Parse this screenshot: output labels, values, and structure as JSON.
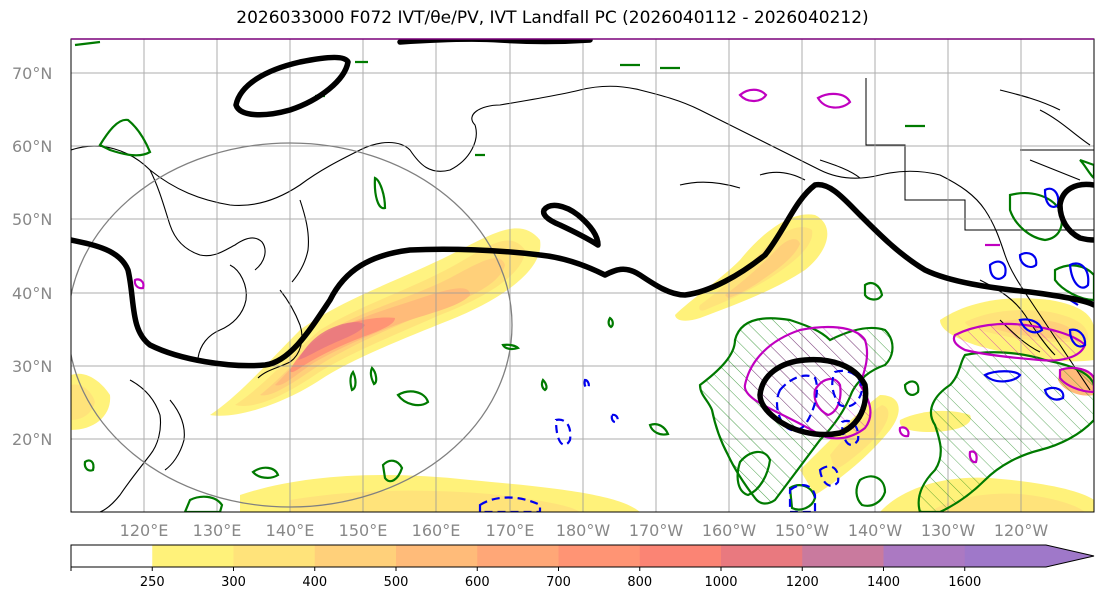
{
  "title": "2026033000 F072 IVT/θe/PV, IVT Landfall PC (2026040112 - 2026040212)",
  "map": {
    "lat_ticks": [
      "70°N",
      "60°N",
      "50°N",
      "40°N",
      "30°N",
      "20°N"
    ],
    "lon_ticks": [
      "120°E",
      "130°E",
      "140°E",
      "150°E",
      "160°E",
      "170°E",
      "180°W",
      "170°W",
      "160°W",
      "150°W",
      "140°W",
      "130°W",
      "120°W"
    ],
    "lat_range": [
      10,
      75
    ],
    "lon_range": [
      110,
      250
    ],
    "grid": true
  },
  "colorbar": {
    "ticks": [
      "250",
      "300",
      "400",
      "500",
      "600",
      "700",
      "800",
      "1000",
      "1200",
      "1400",
      "1600"
    ],
    "colors": [
      "#ffffff",
      "#fff27a",
      "#ffe37a",
      "#ffd07a",
      "#ffbb79",
      "#ffa777",
      "#ff9474",
      "#fb8474",
      "#e9797f",
      "#c97a9e",
      "#ab79c2",
      "#9f78c9"
    ],
    "extend": "max"
  },
  "colors": {
    "theta_e": "#007a00",
    "pv_positive": "#c000c0",
    "pv_negative": "#0000ee",
    "ivt_outline": "#000000",
    "circle": "#808080"
  }
}
